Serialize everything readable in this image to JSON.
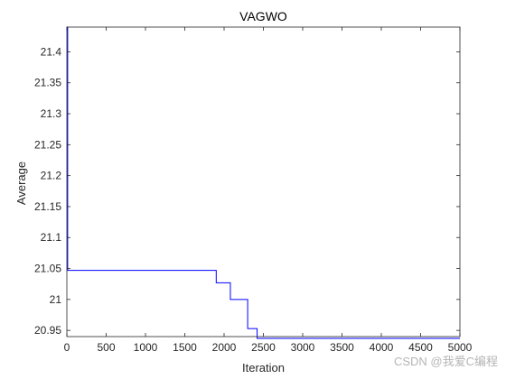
{
  "chart_data": {
    "type": "line",
    "title": "VAGWO",
    "xlabel": "Iteration",
    "ylabel": "Average",
    "xlim": [
      0,
      5000
    ],
    "ylim": [
      20.94,
      21.44
    ],
    "xticks": [
      0,
      500,
      1000,
      1500,
      2000,
      2500,
      3000,
      3500,
      4000,
      4500,
      5000
    ],
    "yticks": [
      20.95,
      21,
      21.05,
      21.1,
      21.15,
      21.2,
      21.25,
      21.3,
      21.35,
      21.4
    ],
    "ytick_labels": [
      "20.95",
      "21",
      "21.05",
      "21.1",
      "21.15",
      "21.2",
      "21.25",
      "21.3",
      "21.35",
      "21.4"
    ],
    "grid": false,
    "series": [
      {
        "color": "#0000ff",
        "step": true,
        "x": [
          0,
          10,
          1900,
          2080,
          2300,
          2420,
          5000
        ],
        "y": [
          21.44,
          21.047,
          21.027,
          21.0,
          20.953,
          20.937,
          20.937
        ]
      }
    ]
  },
  "watermark": "CSDN @我爱C编程",
  "colors": {
    "axis": "#262626",
    "line": "#0000ff"
  }
}
